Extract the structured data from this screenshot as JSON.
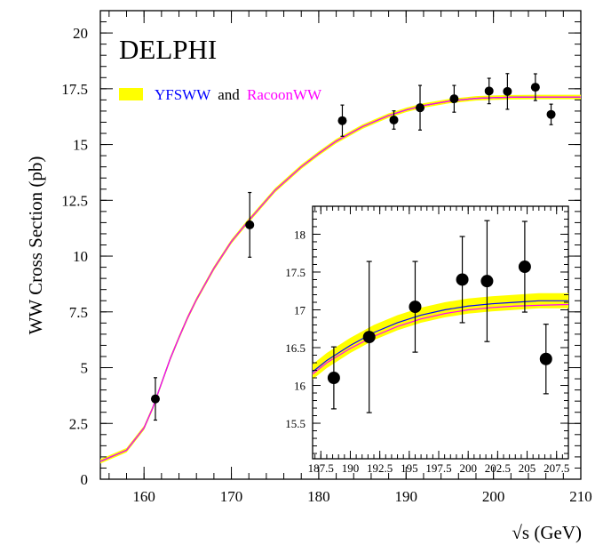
{
  "chart_data": [
    {
      "type": "scatter",
      "title": "",
      "experiment_label": "DELPHI",
      "xlabel": "√s (GeV)",
      "ylabel": "WW Cross Section (pb)",
      "xlim": [
        155,
        210
      ],
      "ylim": [
        0,
        21
      ],
      "xticks": [
        "160",
        "170",
        "180",
        "190",
        "200",
        "210"
      ],
      "yticks": [
        "0",
        "2.5",
        "5",
        "7.5",
        "10",
        "12.5",
        "15",
        "17.5",
        "20"
      ],
      "legend": {
        "placement": "top-left",
        "entries": [
          {
            "text": "YFSWW",
            "color": "#0000ff"
          },
          {
            "text": "and",
            "color": "#000000"
          },
          {
            "text": "RacoonWW",
            "color": "#ff00ff"
          }
        ]
      },
      "series": [
        {
          "kind": "points",
          "x": [
            161.3,
            172.1,
            182.7,
            188.6,
            191.6,
            195.5,
            199.5,
            201.6,
            204.8,
            206.6
          ],
          "y": [
            3.6,
            11.4,
            16.07,
            16.1,
            16.65,
            17.05,
            17.4,
            17.38,
            17.57,
            16.35
          ],
          "yerr": [
            0.95,
            1.45,
            0.7,
            0.41,
            1.0,
            0.6,
            0.57,
            0.8,
            0.6,
            0.46
          ]
        },
        {
          "name": "YFSWW",
          "kind": "curve",
          "color": "#0000ff",
          "x": [
            155,
            158,
            160,
            161,
            162,
            163,
            164,
            165,
            166,
            168,
            170,
            172,
            175,
            178,
            180,
            182,
            185,
            188,
            190,
            192,
            195,
            198,
            200,
            202,
            205,
            208,
            210
          ],
          "y": [
            0.8,
            1.3,
            2.3,
            3.2,
            4.3,
            5.4,
            6.35,
            7.25,
            8.05,
            9.45,
            10.65,
            11.6,
            12.95,
            14.0,
            14.6,
            15.15,
            15.8,
            16.3,
            16.55,
            16.75,
            16.95,
            17.07,
            17.1,
            17.12,
            17.13,
            17.13,
            17.13
          ]
        },
        {
          "name": "RacoonWW",
          "kind": "curve",
          "color": "#ff00ff",
          "x": [
            155,
            158,
            160,
            161,
            162,
            163,
            164,
            165,
            166,
            168,
            170,
            172,
            175,
            178,
            180,
            182,
            185,
            188,
            190,
            192,
            195,
            198,
            200,
            202,
            205,
            208,
            210
          ],
          "y": [
            0.8,
            1.3,
            2.3,
            3.2,
            4.3,
            5.4,
            6.35,
            7.25,
            8.05,
            9.45,
            10.65,
            11.6,
            12.95,
            14.0,
            14.6,
            15.15,
            15.8,
            16.3,
            16.55,
            16.75,
            16.95,
            17.07,
            17.1,
            17.12,
            17.13,
            17.13,
            17.13
          ]
        },
        {
          "kind": "band",
          "color": "#ffff00",
          "halfwidth": 0.1
        }
      ],
      "grid": false
    },
    {
      "type": "scatter",
      "title": "",
      "xlabel": "",
      "ylabel": "",
      "xlim": [
        186.8,
        208.5
      ],
      "ylim": [
        15.03,
        18.37
      ],
      "xticks": [
        "187.5",
        "190",
        "192.5",
        "195",
        "197.5",
        "200",
        "202.5",
        "205",
        "207.5"
      ],
      "yticks": [
        "15.5",
        "16",
        "16.5",
        "17",
        "17.5",
        "18"
      ],
      "series": [
        {
          "kind": "points",
          "x": [
            188.6,
            191.6,
            195.5,
            199.5,
            201.6,
            204.8,
            206.6
          ],
          "y": [
            16.1,
            16.64,
            17.04,
            17.4,
            17.38,
            17.57,
            16.35
          ],
          "yerr": [
            0.41,
            1.0,
            0.6,
            0.57,
            0.8,
            0.6,
            0.46
          ]
        },
        {
          "name": "YFSWW",
          "kind": "curve",
          "color": "#0000ff",
          "x": [
            186.8,
            188,
            190,
            192,
            194,
            196,
            198,
            200,
            202,
            204,
            206,
            208.5
          ],
          "y": [
            16.18,
            16.33,
            16.53,
            16.7,
            16.83,
            16.93,
            17.0,
            17.05,
            17.08,
            17.1,
            17.12,
            17.12
          ]
        },
        {
          "name": "RacoonWW",
          "kind": "curve",
          "color": "#ff00ff",
          "x": [
            186.8,
            188,
            190,
            192,
            194,
            196,
            198,
            200,
            202,
            204,
            206,
            208.5
          ],
          "y": [
            16.15,
            16.3,
            16.49,
            16.65,
            16.78,
            16.88,
            16.95,
            17.0,
            17.03,
            17.05,
            17.06,
            17.07
          ]
        },
        {
          "kind": "band",
          "color": "#ffff00",
          "halfwidth": 0.1
        }
      ],
      "grid": false
    }
  ]
}
